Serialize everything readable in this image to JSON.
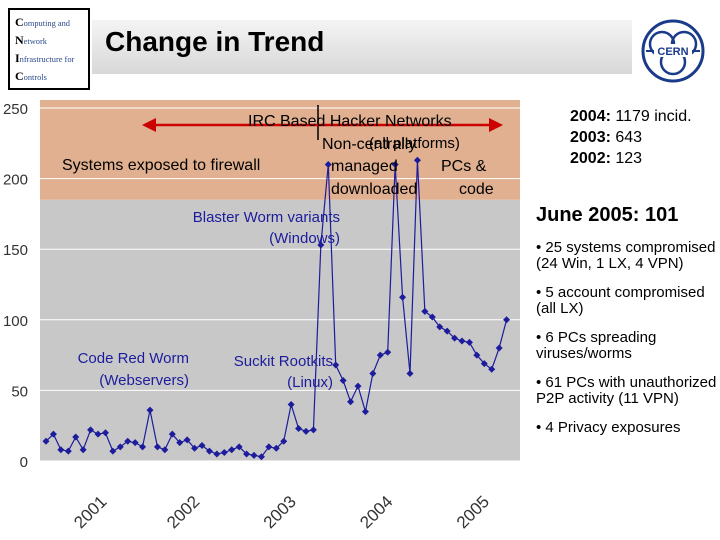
{
  "header": {
    "logo_lines": [
      {
        "initial": "C",
        "rest": "omputing and"
      },
      {
        "initial": "N",
        "rest": "etwork"
      },
      {
        "initial": "I",
        "rest": "nfrastructure for"
      },
      {
        "initial": "C",
        "rest": "ontrols"
      }
    ],
    "title": "Change in Trend",
    "cern_label": "CERN"
  },
  "colors": {
    "band_upper": "#e0b090",
    "band_lower": "#c8c8c8",
    "series": "#1c1c9c",
    "arrow": "#cc0000"
  },
  "chart_data": {
    "type": "line",
    "ylim": [
      0,
      250
    ],
    "yticks": [
      0,
      50,
      100,
      150,
      200,
      250
    ],
    "xlim": [
      0,
      63
    ],
    "x_tick_labels": [
      {
        "label": "2001",
        "x": 6.5
      },
      {
        "label": "2002",
        "x": 19
      },
      {
        "label": "2003",
        "x": 32
      },
      {
        "label": "2004",
        "x": 45
      },
      {
        "label": "2005",
        "x": 58
      }
    ],
    "shaded_bands": [
      {
        "from": 0,
        "to": 185,
        "color": "#c8c8c8"
      },
      {
        "from": 185,
        "to": 250,
        "color": "#e0b090"
      }
    ],
    "series": [
      {
        "values": [
          14,
          19,
          8,
          7,
          17,
          8,
          22,
          19,
          20,
          7,
          10,
          14,
          13,
          10,
          36,
          10,
          8,
          19,
          13,
          15,
          9,
          11,
          7,
          5,
          6,
          8,
          10,
          5,
          4,
          3,
          10,
          9,
          14,
          40,
          23,
          21,
          22,
          153,
          210,
          68,
          57,
          42,
          53,
          35,
          62,
          75,
          77,
          210,
          116,
          62,
          213,
          106,
          102,
          95,
          92,
          87,
          85,
          84,
          75,
          69,
          65,
          80,
          100
        ]
      }
    ],
    "annotations": {
      "firewall": "Systems exposed to firewall",
      "irc": "IRC Based Hacker Networks",
      "all_platforms": "(all platforms)",
      "non_centrally": "Non-centrally",
      "managed": "managed",
      "pcs": "PCs &",
      "downloaded": "downloaded",
      "code": "code",
      "blaster": "Blaster Worm variants",
      "windows": "(Windows)",
      "code_red": "Code Red Worm",
      "webservers": "(Webservers)",
      "suckit": "Suckit Rootkits",
      "linux": "(Linux)"
    }
  },
  "right_panel": {
    "stats": [
      {
        "year": "2004:",
        "value": " 1179 incid."
      },
      {
        "year": "2003:",
        "value": " 643"
      },
      {
        "year": "2002:",
        "value": " 123"
      }
    ],
    "june": "June 2005: 101",
    "bullets": [
      "• 25 systems compromised (24 Win, 1 LX, 4 VPN)",
      "• 5 account compromised (all LX)",
      "• 6 PCs spreading viruses/worms",
      "• 61 PCs with unauthorized P2P activity (11 VPN)",
      "• 4 Privacy exposures"
    ]
  }
}
